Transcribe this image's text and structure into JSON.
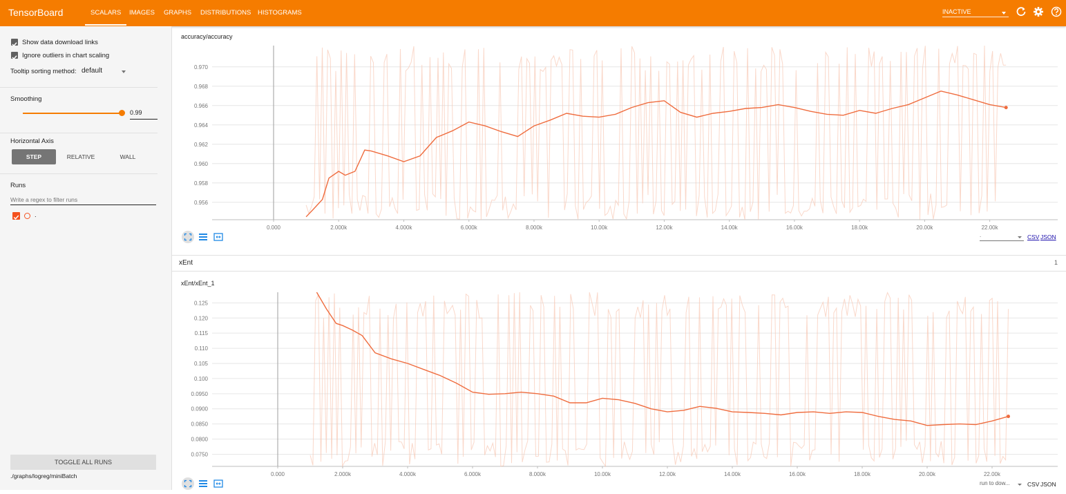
{
  "app": {
    "title": "TensorBoard"
  },
  "nav": {
    "tabs": [
      {
        "label": "SCALARS",
        "active": true
      },
      {
        "label": "IMAGES"
      },
      {
        "label": "GRAPHS"
      },
      {
        "label": "DISTRIBUTIONS"
      },
      {
        "label": "HISTOGRAMS"
      }
    ],
    "status": "INACTIVE"
  },
  "sidebar": {
    "options": [
      {
        "label": "Show data download links",
        "checked": true
      },
      {
        "label": "Ignore outliers in chart scaling",
        "checked": true
      }
    ],
    "tooltip_sort": {
      "label": "Tooltip sorting method:",
      "value": "default"
    },
    "smoothing": {
      "label": "Smoothing",
      "value": "0.99",
      "fraction": 0.99
    },
    "horizontal_axis": {
      "label": "Horizontal Axis",
      "buttons": [
        "STEP",
        "RELATIVE",
        "WALL"
      ],
      "selected": "STEP"
    },
    "runs": {
      "label": "Runs",
      "filter_placeholder": "Write a regex to filter runs",
      "items": [
        {
          "label": ".",
          "checked": true
        }
      ]
    },
    "toggle_all": "TOGGLE ALL RUNS",
    "logdir": "./graphs/logreg/miniBatch"
  },
  "colors": {
    "accent": "#f57c00",
    "smoothed": "#ef6c3e",
    "raw": "#f8c7b4"
  },
  "cards": [
    {
      "title": "accuracy/accuracy",
      "links": [
        "CSV",
        "JSON"
      ],
      "select_value": "."
    },
    {
      "group": "xEnt",
      "group_count": "1",
      "title": "xEnt/xEnt_1",
      "links": [
        "CSV",
        "JSON"
      ],
      "select_value": "run to dow..."
    }
  ],
  "chart_data": [
    {
      "type": "line",
      "title": "accuracy/accuracy",
      "xlim": [
        0,
        24000
      ],
      "ylim": [
        0.9542,
        0.9722
      ],
      "grid": true,
      "x_ticks": [
        "0.000",
        "2.000k",
        "4.000k",
        "6.000k",
        "8.000k",
        "10.00k",
        "12.00k",
        "14.00k",
        "16.00k",
        "18.00k",
        "20.00k",
        "22.00k"
      ],
      "y_ticks": [
        "0.970",
        "0.968",
        "0.966",
        "0.964",
        "0.962",
        "0.960",
        "0.958",
        "0.956"
      ],
      "series": [
        {
          "role": "smoothed",
          "x": [
            1000,
            1200,
            1500,
            1700,
            2000,
            2200,
            2500,
            2800,
            3000,
            3500,
            4000,
            4500,
            5000,
            5500,
            6000,
            6500,
            7000,
            7500,
            8000,
            8500,
            9000,
            9500,
            10000,
            10500,
            11000,
            11500,
            12000,
            12500,
            13000,
            13500,
            14000,
            14500,
            15000,
            15500,
            16000,
            16500,
            17000,
            17500,
            18000,
            18500,
            19000,
            19500,
            20000,
            20500,
            21000,
            21500,
            22000,
            22500
          ],
          "y": [
            0.9545,
            0.9552,
            0.9563,
            0.9585,
            0.9592,
            0.9588,
            0.9592,
            0.9614,
            0.9613,
            0.9608,
            0.9602,
            0.9608,
            0.9627,
            0.9634,
            0.9643,
            0.9639,
            0.9633,
            0.9628,
            0.9639,
            0.9645,
            0.9652,
            0.9649,
            0.9648,
            0.9651,
            0.9658,
            0.9663,
            0.9665,
            0.9653,
            0.9648,
            0.9652,
            0.9654,
            0.9657,
            0.9658,
            0.9661,
            0.9658,
            0.9654,
            0.9651,
            0.965,
            0.9655,
            0.9652,
            0.9657,
            0.9661,
            0.9668,
            0.9675,
            0.9671,
            0.9666,
            0.9661,
            0.9658
          ]
        },
        {
          "role": "raw",
          "x_start": 1000,
          "x_end": 22500,
          "y_range": [
            0.9542,
            0.9722
          ]
        }
      ]
    },
    {
      "type": "line",
      "title": "xEnt/xEnt_1",
      "xlim": [
        0,
        24000
      ],
      "ylim": [
        0.071,
        0.1285
      ],
      "grid": true,
      "x_ticks": [
        "0.000",
        "2.000k",
        "4.000k",
        "6.000k",
        "8.000k",
        "10.00k",
        "12.00k",
        "14.00k",
        "16.00k",
        "18.00k",
        "20.00k",
        "22.00k"
      ],
      "y_ticks": [
        "0.125",
        "0.120",
        "0.115",
        "0.110",
        "0.105",
        "0.100",
        "0.0950",
        "0.0900",
        "0.0850",
        "0.0800",
        "0.0750"
      ],
      "series": [
        {
          "role": "smoothed",
          "x": [
            1200,
            1500,
            1800,
            2000,
            2300,
            2600,
            3000,
            3500,
            4000,
            4500,
            5000,
            5500,
            6000,
            6500,
            7000,
            7500,
            8000,
            8500,
            9000,
            9500,
            10000,
            10500,
            11000,
            11500,
            12000,
            12500,
            13000,
            13500,
            14000,
            14500,
            15000,
            15500,
            16000,
            16500,
            17000,
            17500,
            18000,
            18500,
            19000,
            19500,
            20000,
            20500,
            21000,
            21500,
            22000,
            22500
          ],
          "y": [
            0.1285,
            0.123,
            0.1182,
            0.1175,
            0.116,
            0.1142,
            0.1085,
            0.1065,
            0.105,
            0.103,
            0.101,
            0.0985,
            0.0955,
            0.0948,
            0.095,
            0.0955,
            0.095,
            0.0942,
            0.092,
            0.092,
            0.0935,
            0.093,
            0.0918,
            0.09,
            0.089,
            0.0895,
            0.0908,
            0.0902,
            0.089,
            0.0888,
            0.0885,
            0.088,
            0.0888,
            0.089,
            0.0885,
            0.089,
            0.0888,
            0.0875,
            0.0865,
            0.086,
            0.0845,
            0.0848,
            0.085,
            0.0848,
            0.086,
            0.0875
          ]
        },
        {
          "role": "raw",
          "x_start": 1000,
          "x_end": 22500,
          "y_range": [
            0.071,
            0.1285
          ]
        }
      ]
    }
  ]
}
